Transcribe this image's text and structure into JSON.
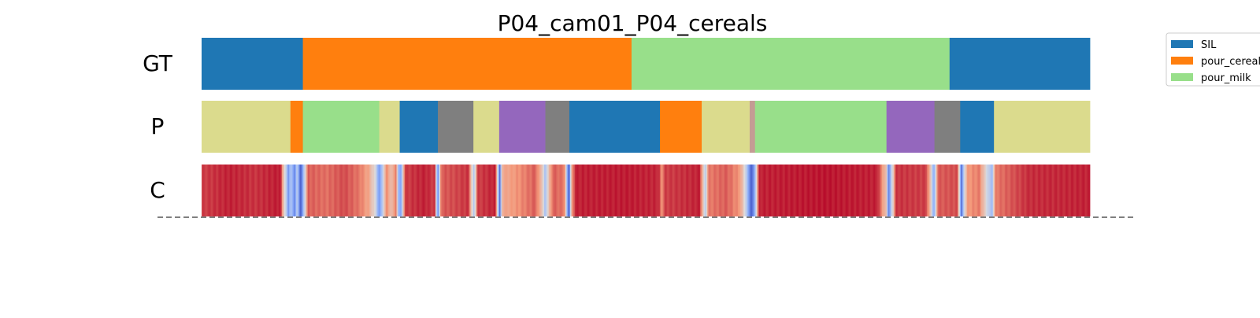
{
  "chart_data": {
    "type": "heatmap",
    "title": "P04_cam01_P04_cereals",
    "x_range": [
      0,
      1
    ],
    "rows": [
      {
        "label": "GT",
        "kind": "segments",
        "segments": [
          {
            "start": 0.0,
            "end": 0.114,
            "class": "SIL"
          },
          {
            "start": 0.114,
            "end": 0.484,
            "class": "pour_cereals"
          },
          {
            "start": 0.484,
            "end": 0.842,
            "class": "pour_milk"
          },
          {
            "start": 0.842,
            "end": 1.0,
            "class": "SIL"
          }
        ]
      },
      {
        "label": "P",
        "kind": "segments",
        "segments": [
          {
            "start": 0.0,
            "end": 0.1,
            "class": "olive"
          },
          {
            "start": 0.1,
            "end": 0.114,
            "class": "pour_cereals"
          },
          {
            "start": 0.114,
            "end": 0.2,
            "class": "pour_milk"
          },
          {
            "start": 0.2,
            "end": 0.223,
            "class": "olive"
          },
          {
            "start": 0.223,
            "end": 0.266,
            "class": "SIL"
          },
          {
            "start": 0.266,
            "end": 0.306,
            "class": "gray"
          },
          {
            "start": 0.306,
            "end": 0.335,
            "class": "olive"
          },
          {
            "start": 0.335,
            "end": 0.387,
            "class": "purple"
          },
          {
            "start": 0.387,
            "end": 0.414,
            "class": "gray"
          },
          {
            "start": 0.414,
            "end": 0.516,
            "class": "SIL"
          },
          {
            "start": 0.516,
            "end": 0.563,
            "class": "pour_cereals"
          },
          {
            "start": 0.563,
            "end": 0.617,
            "class": "olive"
          },
          {
            "start": 0.617,
            "end": 0.623,
            "class": "tan"
          },
          {
            "start": 0.623,
            "end": 0.771,
            "class": "pour_milk"
          },
          {
            "start": 0.771,
            "end": 0.825,
            "class": "purple"
          },
          {
            "start": 0.825,
            "end": 0.854,
            "class": "gray"
          },
          {
            "start": 0.854,
            "end": 0.892,
            "class": "SIL"
          },
          {
            "start": 0.892,
            "end": 1.0,
            "class": "olive"
          }
        ]
      },
      {
        "label": "C",
        "kind": "confidence",
        "colormap": "coolwarm",
        "breakpoints": [
          {
            "x": 0.0,
            "v": 0.9
          },
          {
            "x": 0.03,
            "v": 0.95
          },
          {
            "x": 0.06,
            "v": 0.92
          },
          {
            "x": 0.088,
            "v": 0.96
          },
          {
            "x": 0.093,
            "v": 0.5
          },
          {
            "x": 0.097,
            "v": 0.2
          },
          {
            "x": 0.1,
            "v": 0.35
          },
          {
            "x": 0.104,
            "v": 0.15
          },
          {
            "x": 0.107,
            "v": 0.4
          },
          {
            "x": 0.111,
            "v": 0.02
          },
          {
            "x": 0.114,
            "v": 0.3
          },
          {
            "x": 0.119,
            "v": 0.85
          },
          {
            "x": 0.14,
            "v": 0.82
          },
          {
            "x": 0.16,
            "v": 0.88
          },
          {
            "x": 0.178,
            "v": 0.8
          },
          {
            "x": 0.188,
            "v": 0.7
          },
          {
            "x": 0.196,
            "v": 0.45
          },
          {
            "x": 0.199,
            "v": 0.15
          },
          {
            "x": 0.203,
            "v": 0.4
          },
          {
            "x": 0.208,
            "v": 0.82
          },
          {
            "x": 0.212,
            "v": 0.6
          },
          {
            "x": 0.218,
            "v": 0.8
          },
          {
            "x": 0.221,
            "v": 0.3
          },
          {
            "x": 0.224,
            "v": 0.2
          },
          {
            "x": 0.228,
            "v": 0.9
          },
          {
            "x": 0.25,
            "v": 0.95
          },
          {
            "x": 0.262,
            "v": 0.9
          },
          {
            "x": 0.264,
            "v": 0.3
          },
          {
            "x": 0.266,
            "v": 0.2
          },
          {
            "x": 0.269,
            "v": 0.85
          },
          {
            "x": 0.3,
            "v": 0.92
          },
          {
            "x": 0.303,
            "v": 0.6
          },
          {
            "x": 0.306,
            "v": 0.35
          },
          {
            "x": 0.31,
            "v": 0.9
          },
          {
            "x": 0.33,
            "v": 0.95
          },
          {
            "x": 0.333,
            "v": 0.4
          },
          {
            "x": 0.335,
            "v": 0.05
          },
          {
            "x": 0.338,
            "v": 0.7
          },
          {
            "x": 0.345,
            "v": 0.72
          },
          {
            "x": 0.36,
            "v": 0.78
          },
          {
            "x": 0.375,
            "v": 0.85
          },
          {
            "x": 0.383,
            "v": 0.6
          },
          {
            "x": 0.386,
            "v": 0.3
          },
          {
            "x": 0.389,
            "v": 0.55
          },
          {
            "x": 0.395,
            "v": 0.85
          },
          {
            "x": 0.408,
            "v": 0.8
          },
          {
            "x": 0.411,
            "v": 0.2
          },
          {
            "x": 0.413,
            "v": 0.05
          },
          {
            "x": 0.416,
            "v": 0.7
          },
          {
            "x": 0.42,
            "v": 0.95
          },
          {
            "x": 0.48,
            "v": 0.96
          },
          {
            "x": 0.514,
            "v": 0.94
          },
          {
            "x": 0.517,
            "v": 0.75
          },
          {
            "x": 0.521,
            "v": 0.9
          },
          {
            "x": 0.56,
            "v": 0.95
          },
          {
            "x": 0.563,
            "v": 0.7
          },
          {
            "x": 0.566,
            "v": 0.35
          },
          {
            "x": 0.57,
            "v": 0.8
          },
          {
            "x": 0.59,
            "v": 0.85
          },
          {
            "x": 0.605,
            "v": 0.75
          },
          {
            "x": 0.612,
            "v": 0.45
          },
          {
            "x": 0.615,
            "v": 0.2
          },
          {
            "x": 0.619,
            "v": 0.05
          },
          {
            "x": 0.622,
            "v": 0.25
          },
          {
            "x": 0.624,
            "v": 0.55
          },
          {
            "x": 0.627,
            "v": 0.95
          },
          {
            "x": 0.7,
            "v": 0.97
          },
          {
            "x": 0.76,
            "v": 0.95
          },
          {
            "x": 0.77,
            "v": 0.6
          },
          {
            "x": 0.773,
            "v": 0.1
          },
          {
            "x": 0.777,
            "v": 0.5
          },
          {
            "x": 0.781,
            "v": 0.92
          },
          {
            "x": 0.815,
            "v": 0.9
          },
          {
            "x": 0.82,
            "v": 0.6
          },
          {
            "x": 0.824,
            "v": 0.2
          },
          {
            "x": 0.828,
            "v": 0.85
          },
          {
            "x": 0.85,
            "v": 0.88
          },
          {
            "x": 0.853,
            "v": 0.4
          },
          {
            "x": 0.855,
            "v": 0.05
          },
          {
            "x": 0.858,
            "v": 0.5
          },
          {
            "x": 0.862,
            "v": 0.75
          },
          {
            "x": 0.875,
            "v": 0.8
          },
          {
            "x": 0.884,
            "v": 0.45
          },
          {
            "x": 0.889,
            "v": 0.3
          },
          {
            "x": 0.893,
            "v": 0.8
          },
          {
            "x": 0.93,
            "v": 0.93
          },
          {
            "x": 1.0,
            "v": 0.95
          }
        ]
      }
    ],
    "legend": {
      "placement": "top-right",
      "entries": [
        "SIL",
        "pour_cereals",
        "pour_milk"
      ]
    },
    "colors": {
      "SIL": "#1f77b4",
      "pour_cereals": "#ff7f0e",
      "pour_milk": "#98df8a",
      "olive": "#dbdb8d",
      "gray": "#7f7f7f",
      "purple": "#9467bd",
      "tan": "#c49c94"
    },
    "baseline_style": "dashed"
  }
}
